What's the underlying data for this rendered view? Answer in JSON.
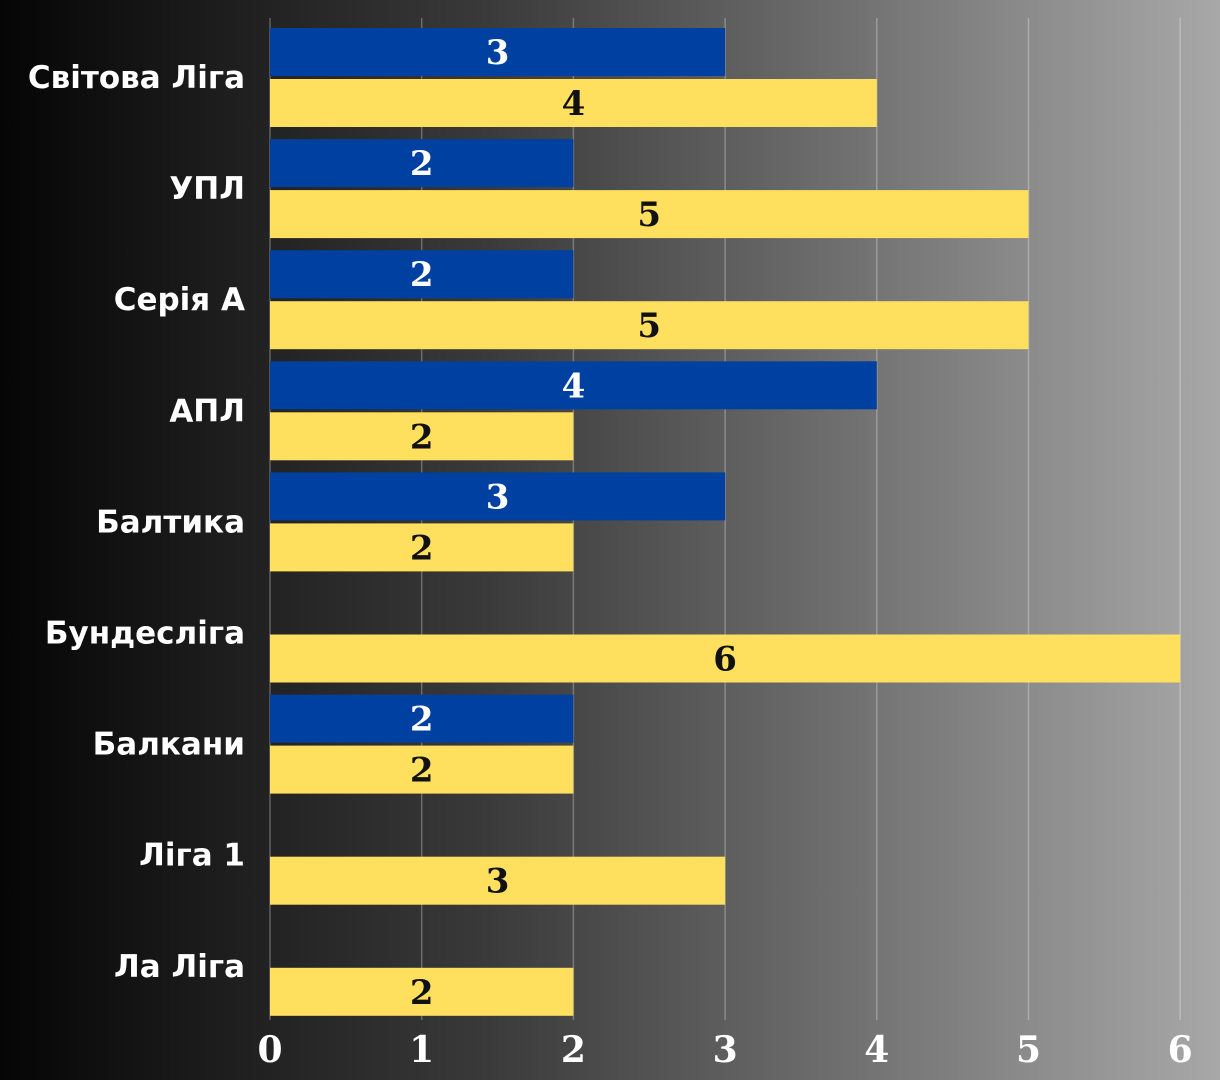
{
  "chart_data": {
    "type": "bar",
    "orientation": "horizontal",
    "categories": [
      "Світова Ліга",
      "УПЛ",
      "Серія А",
      "АПЛ",
      "Балтика",
      "Бундесліга",
      "Балкани",
      "Ліга 1",
      "Ла Ліга"
    ],
    "series": [
      {
        "color": "#0040A0",
        "values": [
          3,
          2,
          2,
          4,
          3,
          null,
          2,
          null,
          null
        ]
      },
      {
        "color": "#FFDF5E",
        "values": [
          4,
          5,
          5,
          2,
          2,
          6,
          2,
          3,
          2
        ]
      }
    ],
    "xlim": [
      0,
      6
    ],
    "xticks": [
      "0",
      "1",
      "2",
      "3",
      "4",
      "5",
      "6"
    ],
    "grid": true,
    "data_labels": true
  }
}
